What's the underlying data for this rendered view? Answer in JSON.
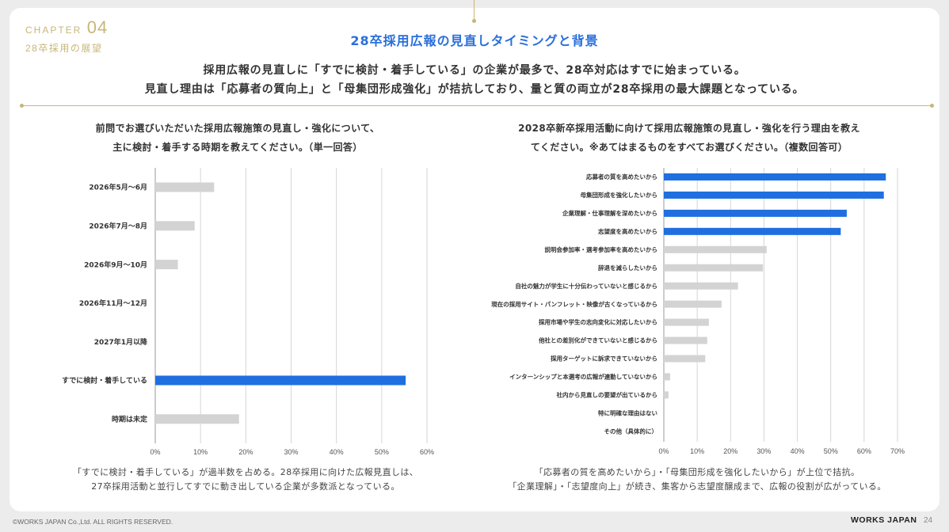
{
  "header": {
    "chapter_label": "CHAPTER",
    "chapter_number": "04",
    "chapter_subtitle": "28卒採用の展望",
    "title": "28卒採用広報の見直しタイミングと背景",
    "lead_line1": "採用広報の見直しに「すでに検討・着手している」の企業が最多で、28卒対応はすでに始まっている。",
    "lead_line2": "見直し理由は「応募者の質向上」と「母集団形成強化」が拮抗しており、量と質の両立が28卒採用の最大課題となっている。"
  },
  "left_panel": {
    "question_line1": "前問でお選びいただいた採用広報施策の見直し・強化について、",
    "question_line2": "主に検討・着手する時期を教えてください。（単一回答）",
    "note_line1": "「すでに検討・着手している」が過半数を占める。28卒採用に向けた広報見直しは、",
    "note_line2": "27卒採用活動と並行してすでに動き出している企業が多数派となっている。"
  },
  "right_panel": {
    "question_line1": "2028卒新卒採用活動に向けて採用広報施策の見直し・強化を行う理由を教え",
    "question_line2": "てください。※あてはまるものをすべてお選びください。（複数回答可）",
    "note_line1": "「応募者の質を高めたいから」・「母集団形成を強化したいから」が上位で拮抗。",
    "note_line2": "「企業理解」・「志望度向上」が続き、集客から志望度醸成まで、広報の役割が広がっている。"
  },
  "chart_data": [
    {
      "type": "bar",
      "orientation": "horizontal",
      "categories": [
        "2026年5月～6月",
        "2026年7月～8月",
        "2026年9月～10月",
        "2026年11月～12月",
        "2027年1月以降",
        "すでに検討・着手している",
        "時期は未定"
      ],
      "values": [
        13,
        8.7,
        5,
        0,
        0,
        55.3,
        18.5
      ],
      "highlight": [
        false,
        false,
        false,
        false,
        false,
        true,
        false
      ],
      "xlim": [
        0,
        60
      ],
      "xticks": [
        "0%",
        "10%",
        "20%",
        "30%",
        "40%",
        "50%",
        "60%"
      ],
      "grid": true,
      "colors": {
        "highlight": "#1f6fe0",
        "default": "#d3d3d3"
      }
    },
    {
      "type": "bar",
      "orientation": "horizontal",
      "categories": [
        "応募者の質を高めたいから",
        "母集団形成を強化したいから",
        "企業理解・仕事理解を深めたいから",
        "志望度を高めたいから",
        "説明会参加率・選考参加率を高めたいから",
        "辞退を減らしたいから",
        "自社の魅力が学生に十分伝わっていないと感じるから",
        "現在の採用サイト・パンフレット・映像が古くなっているから",
        "採用市場や学生の志向変化に対応したいから",
        "他社との差別化ができていないと感じるから",
        "採用ターゲットに訴求できていないから",
        "インターンシップと本選考の広報が連動していないから",
        "社内から見直しの要望が出ているから",
        "特に明確な理由はない",
        "その他（具体的に）"
      ],
      "values": [
        66.5,
        65.9,
        54.8,
        53,
        30.8,
        29.7,
        22.2,
        17.3,
        13.5,
        13,
        12.4,
        1.9,
        1.4,
        0,
        0
      ],
      "highlight": [
        true,
        true,
        true,
        true,
        false,
        false,
        false,
        false,
        false,
        false,
        false,
        false,
        false,
        false,
        false
      ],
      "xlim": [
        0,
        70
      ],
      "xticks": [
        "0%",
        "10%",
        "20%",
        "30%",
        "40%",
        "50%",
        "60%",
        "70%"
      ],
      "grid": true,
      "colors": {
        "highlight": "#1f6fe0",
        "default": "#d3d3d3"
      }
    }
  ],
  "footer": {
    "copyright": "©WORKS JAPAN Co.,Ltd. ALL RIGHTS RESERVED.",
    "brand": "WORKS JAPAN",
    "page_number": "24"
  }
}
